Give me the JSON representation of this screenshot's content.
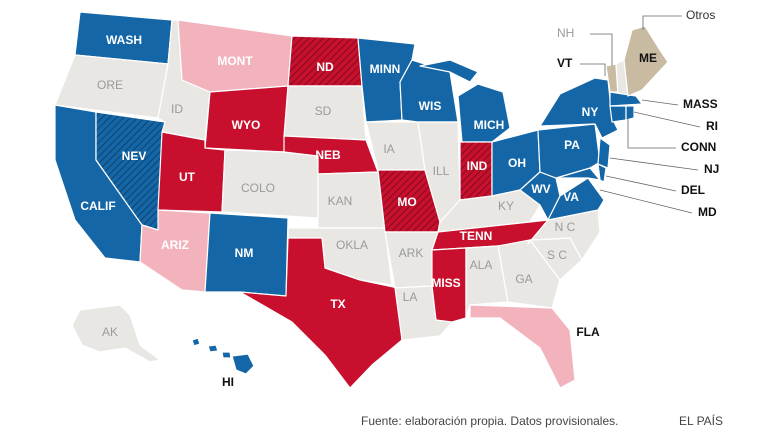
{
  "colors": {
    "dem": "#1566a6",
    "rep": "#c8102e",
    "lean_rep": "#f2b3bc",
    "undecided": "#e9e7e4",
    "other": "#c9bba2"
  },
  "labels": {
    "WA": "WASH",
    "OR": "ORE",
    "CA": "CALIF",
    "NV": "NEV",
    "ID": "ID",
    "MT": "MONT",
    "WY": "WYO",
    "UT": "UT",
    "AZ": "ARIZ",
    "CO": "COLO",
    "NM": "NM",
    "ND": "ND",
    "SD": "SD",
    "NE": "NEB",
    "KS": "KAN",
    "OK": "OKLA",
    "TX": "TX",
    "MN": "MINN",
    "IA": "IA",
    "MO": "MO",
    "AR": "ARK",
    "LA": "LA",
    "WI": "WIS",
    "IL": "ILL",
    "MI": "MICH",
    "IN": "IND",
    "OH": "OH",
    "KY": "KY",
    "TN": "TENN",
    "MS": "MISS",
    "AL": "ALA",
    "GA": "GA",
    "FL": "FLA",
    "SC": "S C",
    "NC": "N C",
    "VA": "VA",
    "WV": "WV",
    "PA": "PA",
    "NY": "NY",
    "ME": "ME",
    "AK": "AK",
    "HI": "HI"
  },
  "callouts": {
    "NH": "NH",
    "VT": "VT",
    "Others": "Otros",
    "MASS": "MASS",
    "RI": "RI",
    "CONN": "CONN",
    "NJ": "NJ",
    "DEL": "DEL",
    "MD": "MD"
  },
  "footer": {
    "source": "Fuente: elaboración propia. Datos provisionales.",
    "brand": "EL PAÍS"
  }
}
